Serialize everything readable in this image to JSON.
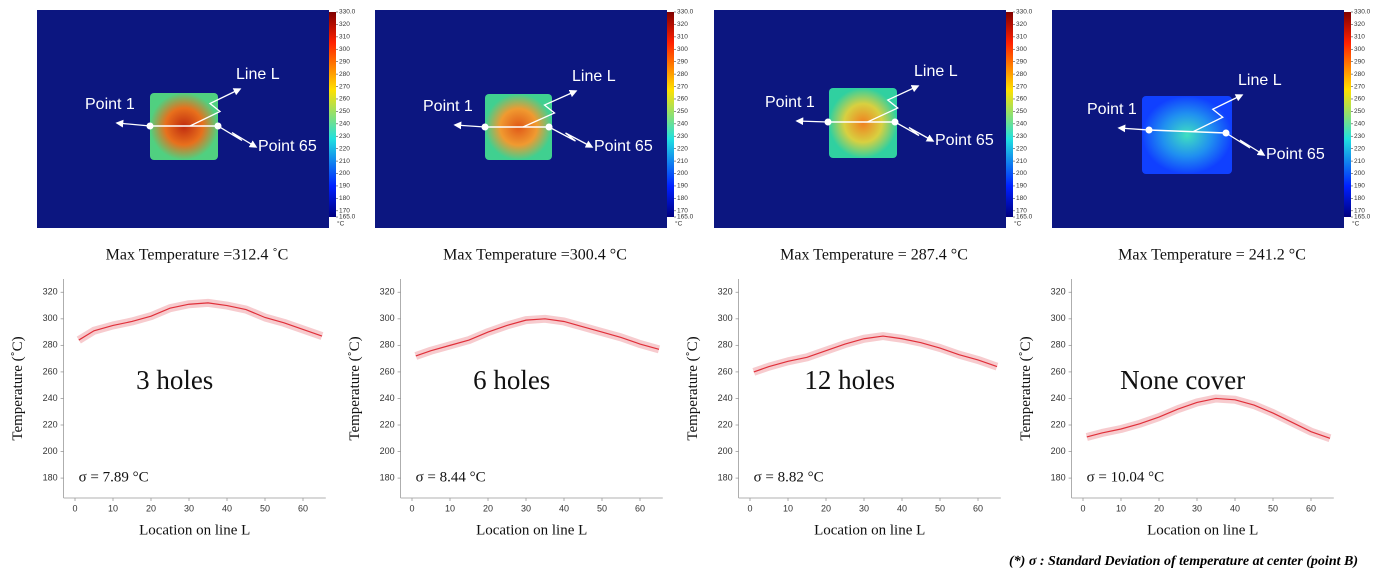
{
  "thermal_images": [
    {
      "point_start_label": "Point 1",
      "line_label": "Line L",
      "point_end_label": "Point 65",
      "caption": "Max Temperature =312.4 ˚C"
    },
    {
      "point_start_label": "Point 1",
      "line_label": "Line L",
      "point_end_label": "Point 65",
      "caption": "Max Temperature =300.4 °C"
    },
    {
      "point_start_label": "Point 1",
      "line_label": "Line L",
      "point_end_label": "Point 65",
      "caption": "Max Temperature = 287.4 °C"
    },
    {
      "point_start_label": "Point 1",
      "line_label": "Line L",
      "point_end_label": "Point 65",
      "caption": "Max Temperature = 241.2 °C"
    }
  ],
  "colorbar": {
    "unit": "°C",
    "lim": [
      165,
      330
    ],
    "ticks": [
      {
        "value": 330,
        "label": "330.0"
      },
      320,
      310,
      300,
      290,
      280,
      270,
      260,
      250,
      240,
      230,
      220,
      210,
      200,
      190,
      180,
      170,
      {
        "value": 165,
        "label": "165.0"
      }
    ]
  },
  "chart_data": [
    {
      "type": "line",
      "annotation": "3 holes",
      "sigma_label": "σ = 7.89 °C",
      "xlabel": "Location on line L",
      "ylabel": "Temperature (˚C)",
      "x": [
        1,
        5,
        10,
        15,
        20,
        25,
        30,
        35,
        40,
        45,
        50,
        55,
        60,
        65
      ],
      "values": [
        284,
        291,
        295,
        298,
        302,
        308,
        311,
        312,
        310,
        307,
        301,
        297,
        292,
        287
      ],
      "color": "#e0303a",
      "xlim": [
        -3,
        66
      ],
      "xticks": [
        0,
        10,
        20,
        30,
        40,
        50,
        60
      ],
      "ylim": [
        165,
        330
      ],
      "yticks": [
        180,
        200,
        220,
        240,
        260,
        280,
        300,
        320
      ]
    },
    {
      "type": "line",
      "annotation": "6 holes",
      "sigma_label": "σ = 8.44 °C",
      "xlabel": "Location on line L",
      "ylabel": "Temperature (˚C)",
      "x": [
        1,
        5,
        10,
        15,
        20,
        25,
        30,
        35,
        40,
        45,
        50,
        55,
        60,
        65
      ],
      "values": [
        272,
        276,
        280,
        284,
        290,
        295,
        299,
        300,
        298,
        294,
        290,
        286,
        281,
        277
      ],
      "color": "#e0303a",
      "xlim": [
        -3,
        66
      ],
      "xticks": [
        0,
        10,
        20,
        30,
        40,
        50,
        60
      ],
      "ylim": [
        165,
        330
      ],
      "yticks": [
        180,
        200,
        220,
        240,
        260,
        280,
        300,
        320
      ]
    },
    {
      "type": "line",
      "annotation": "12 holes",
      "sigma_label": "σ = 8.82 °C",
      "xlabel": "Location on line L",
      "ylabel": "Temperature (˚C)",
      "x": [
        1,
        5,
        10,
        15,
        20,
        25,
        30,
        35,
        40,
        45,
        50,
        55,
        60,
        65
      ],
      "values": [
        260,
        264,
        268,
        271,
        276,
        281,
        285,
        287,
        285,
        282,
        278,
        273,
        269,
        264
      ],
      "color": "#e0303a",
      "xlim": [
        -3,
        66
      ],
      "xticks": [
        0,
        10,
        20,
        30,
        40,
        50,
        60
      ],
      "ylim": [
        165,
        330
      ],
      "yticks": [
        180,
        200,
        220,
        240,
        260,
        280,
        300,
        320
      ]
    },
    {
      "type": "line",
      "annotation": "None cover",
      "sigma_label": "σ = 10.04 °C",
      "xlabel": "Location on line L",
      "ylabel": "Temperature (˚C)",
      "x": [
        1,
        5,
        10,
        15,
        20,
        25,
        30,
        35,
        40,
        45,
        50,
        55,
        60,
        65
      ],
      "values": [
        211,
        214,
        217,
        221,
        226,
        232,
        237,
        240,
        239,
        235,
        229,
        222,
        215,
        210
      ],
      "color": "#e0303a",
      "xlim": [
        -3,
        66
      ],
      "xticks": [
        0,
        10,
        20,
        30,
        40,
        50,
        60
      ],
      "ylim": [
        165,
        330
      ],
      "yticks": [
        180,
        200,
        220,
        240,
        260,
        280,
        300,
        320
      ]
    }
  ],
  "footnote": "(*) σ : Standard Deviation of temperature at center (point B)"
}
